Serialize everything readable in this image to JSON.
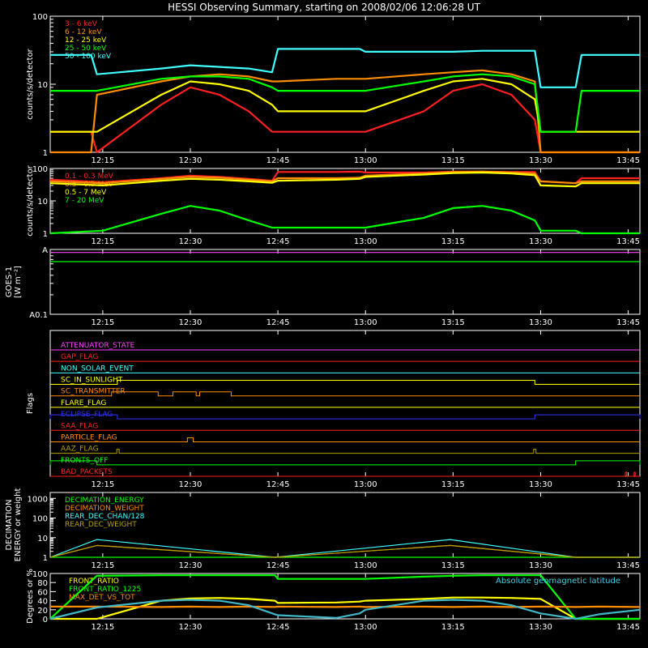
{
  "page": {
    "title": "HESSI Observing Summary, starting on 2008/02/06 12:06:28 UT"
  },
  "time_axis": {
    "start_minutes": 726,
    "end_minutes": 827,
    "ticks": [
      {
        "t": 735,
        "label": "12:15"
      },
      {
        "t": 750,
        "label": "12:30"
      },
      {
        "t": 765,
        "label": "12:45"
      },
      {
        "t": 780,
        "label": "13:00"
      },
      {
        "t": 795,
        "label": "13:15"
      },
      {
        "t": 810,
        "label": "13:30"
      },
      {
        "t": 825,
        "label": "13:45"
      }
    ]
  },
  "chart_data": [
    {
      "type": "line",
      "id": "low-energy",
      "ylabel": "counts/s/detector",
      "yscale": "log",
      "ylim": [
        1,
        100
      ],
      "yticks": [
        {
          "v": 1,
          "label": "1"
        },
        {
          "v": 10,
          "label": "10"
        },
        {
          "v": 100,
          "label": "100"
        }
      ],
      "x": [
        726,
        733,
        734,
        745,
        750,
        755,
        760,
        764,
        765,
        775,
        779,
        780,
        790,
        795,
        800,
        805,
        809,
        810,
        816,
        817,
        827
      ],
      "series": [
        {
          "name": "3 - 6 keV",
          "color": "#ff2020",
          "values": [
            2,
            2,
            1,
            5,
            9,
            7,
            4,
            2,
            2,
            2,
            2,
            2,
            4,
            8,
            10,
            7,
            3,
            1,
            1,
            1,
            1
          ]
        },
        {
          "name": "6 - 12 keV",
          "color": "#ff8c00",
          "values": [
            1,
            1,
            7,
            11,
            13,
            14,
            13,
            11,
            11,
            12,
            12,
            12,
            14,
            15,
            16,
            14,
            11,
            1,
            1,
            1,
            1
          ]
        },
        {
          "name": "12 - 25 keV",
          "color": "#ffff00",
          "values": [
            2,
            2,
            2,
            7,
            11,
            10,
            8,
            5,
            4,
            4,
            4,
            4,
            8,
            11,
            12,
            10,
            6,
            2,
            2,
            2,
            2
          ]
        },
        {
          "name": "25 - 50 keV",
          "color": "#00ff00",
          "values": [
            8,
            8,
            8,
            12,
            13,
            13,
            12,
            9,
            8,
            8,
            8,
            8,
            11,
            13,
            14,
            13,
            10,
            2,
            2,
            8,
            8
          ]
        },
        {
          "name": "50 - 100 keV",
          "color": "#40ffff",
          "values": [
            27,
            27,
            14,
            17,
            19,
            18,
            17,
            15,
            33,
            33,
            33,
            30,
            30,
            30,
            31,
            31,
            31,
            9,
            9,
            27,
            27
          ]
        }
      ]
    },
    {
      "type": "line",
      "id": "high-energy",
      "ylabel": "counts/s/detector",
      "yscale": "log",
      "ylim": [
        1,
        100
      ],
      "yticks": [
        {
          "v": 1,
          "label": "1"
        },
        {
          "v": 10,
          "label": "10"
        },
        {
          "v": 100,
          "label": "100"
        }
      ],
      "x": [
        726,
        735,
        745,
        750,
        755,
        760,
        764,
        765,
        775,
        779,
        780,
        790,
        795,
        800,
        805,
        809,
        810,
        816,
        817,
        827
      ],
      "series": [
        {
          "name": "0.1 - 0.3 MeV",
          "color": "#ff2020",
          "values": [
            45,
            38,
            50,
            60,
            55,
            48,
            42,
            78,
            78,
            80,
            75,
            75,
            80,
            80,
            78,
            78,
            40,
            35,
            50,
            50
          ]
        },
        {
          "name": "0.3 - 0.5 MeV",
          "color": "#ff8c00",
          "values": [
            40,
            35,
            48,
            55,
            52,
            45,
            40,
            50,
            50,
            52,
            60,
            70,
            78,
            80,
            75,
            70,
            40,
            35,
            40,
            40
          ]
        },
        {
          "name": "0.5 - 7 MeV",
          "color": "#ffff00",
          "values": [
            35,
            30,
            42,
            48,
            45,
            40,
            36,
            42,
            45,
            48,
            55,
            65,
            72,
            75,
            70,
            62,
            30,
            28,
            35,
            35
          ]
        },
        {
          "name": "7 - 20 MeV",
          "color": "#00ff00",
          "values": [
            1,
            1.2,
            4,
            7,
            5,
            2.5,
            1.5,
            1.5,
            1.5,
            1.5,
            1.5,
            3,
            6,
            7,
            5,
            2.5,
            1.2,
            1.2,
            1,
            1
          ]
        }
      ]
    },
    {
      "type": "line",
      "id": "goes",
      "ylabel": "GOES-1",
      "ylabel2": "[W m⁻²]",
      "yscale": "log",
      "ylim": [
        0.1,
        1
      ],
      "yticks": [
        {
          "v": 1,
          "label": "A"
        },
        {
          "v": 0.1,
          "label": "A0.1"
        }
      ],
      "x": [
        726,
        827
      ],
      "series": [
        {
          "name": "",
          "color": "#ff40ff",
          "values": [
            0.9,
            0.9
          ]
        },
        {
          "name": "",
          "color": "#00ff00",
          "values": [
            0.65,
            0.65
          ]
        }
      ]
    },
    {
      "type": "line",
      "id": "flags",
      "ylabel": "Flags",
      "flags": [
        {
          "name": "ATTENUATOR_STATE",
          "color": "#ff40ff",
          "segments": []
        },
        {
          "name": "GAP_FLAG",
          "color": "#ff2020",
          "segments": []
        },
        {
          "name": "NON_SOLAR_EVENT",
          "color": "#40ffff",
          "segments": []
        },
        {
          "name": "SC_IN_SUNLIGHT",
          "color": "#ffff00",
          "segments": [
            [
              737.5,
              809
            ]
          ]
        },
        {
          "name": "SC_TRANSMITTER",
          "color": "#ff8c00",
          "segments": [
            [
              736.5,
              744.5
            ],
            [
              747,
              751
            ],
            [
              751.6,
              757
            ]
          ]
        },
        {
          "name": "FLARE_FLAG",
          "color": "#ffff00",
          "segments": []
        },
        {
          "name": "ECLIPSE_FLAG",
          "color": "#3030ff",
          "segments": [
            [
              726,
              737.5
            ],
            [
              809,
              827
            ]
          ]
        },
        {
          "name": "SAA_FLAG",
          "color": "#ff2020",
          "segments": []
        },
        {
          "name": "PARTICLE_FLAG",
          "color": "#ff8c00",
          "segments": [
            [
              749.5,
              750.5
            ]
          ]
        },
        {
          "name": "AAZ_FLAG",
          "color": "#b8a000",
          "segments": [
            [
              737.4,
              737.8
            ],
            [
              808.8,
              809.2
            ]
          ]
        },
        {
          "name": "FRONTS_OFF",
          "color": "#00ff00",
          "segments": [
            [
              726,
              734
            ],
            [
              816,
              827
            ]
          ]
        },
        {
          "name": "BAD_PACKETS",
          "color": "#ff2020",
          "segments": [
            [
              824.5,
              824.7
            ],
            [
              826,
              826.2
            ]
          ]
        }
      ]
    },
    {
      "type": "line",
      "id": "decimation",
      "ylabel": "DECIMATION",
      "ylabel2": "ENERGY or weight",
      "yscale": "log",
      "ylim": [
        1,
        2000
      ],
      "yticks": [
        {
          "v": 1,
          "label": "1"
        },
        {
          "v": 10,
          "label": "10"
        },
        {
          "v": 100,
          "label": "100"
        },
        {
          "v": 1000,
          "label": "1000"
        }
      ],
      "x": [
        726,
        734,
        764.5,
        794.5,
        816,
        827
      ],
      "series": [
        {
          "name": "DECIMATION_ENERGY",
          "color": "#00ff00",
          "values": [
            1,
            1,
            1,
            1,
            1,
            1
          ]
        },
        {
          "name": "DECIMATION_WEIGHT",
          "color": "#ff8c00",
          "values": [
            1,
            4,
            1,
            4,
            1,
            1
          ]
        },
        {
          "name": "REAR_DEC_CHAN/128",
          "color": "#40ffff",
          "values": [
            1,
            8,
            1,
            8,
            1,
            1
          ]
        },
        {
          "name": "REAR_DEC_WEIGHT",
          "color": "#b8a000",
          "values": [
            1,
            4,
            1,
            4,
            1,
            1
          ]
        }
      ]
    },
    {
      "type": "line",
      "id": "ratios",
      "ylabel": "Degrees or %",
      "ylim": [
        0,
        100
      ],
      "yticks": [
        {
          "v": 0,
          "label": "0"
        },
        {
          "v": 20,
          "label": "20"
        },
        {
          "v": 40,
          "label": "40"
        },
        {
          "v": 60,
          "label": "60"
        },
        {
          "v": 80,
          "label": "80"
        },
        {
          "v": 100,
          "label": "100"
        }
      ],
      "annotation": "Absolute geomagnetic latitude",
      "x": [
        726,
        734,
        745,
        750,
        755,
        760,
        764.5,
        765,
        775,
        779,
        780,
        790,
        795,
        800,
        805,
        810,
        816,
        820,
        827
      ],
      "series": [
        {
          "name": "FRONT_RATIO",
          "color": "#ffff00",
          "values": [
            0,
            0,
            40,
            45,
            46,
            44,
            40,
            35,
            36,
            38,
            40,
            44,
            47,
            47,
            46,
            44,
            0,
            0,
            0
          ]
        },
        {
          "name": "FRONT_RATIO_1225",
          "color": "#00ff00",
          "values": [
            0,
            95,
            96,
            96,
            96,
            96,
            96,
            88,
            88,
            88,
            88,
            93,
            95,
            96,
            96,
            96,
            0,
            0,
            0
          ]
        },
        {
          "name": "MAX_DET_VS_TOT",
          "color": "#ff8c00",
          "values": [
            27,
            27,
            26,
            27,
            26,
            27,
            26,
            27,
            26,
            27,
            26,
            27,
            26,
            27,
            26,
            27,
            26,
            27,
            26
          ]
        },
        {
          "name": "",
          "color": "#40b8c8",
          "values": [
            0,
            25,
            40,
            42,
            40,
            30,
            10,
            8,
            2,
            12,
            20,
            40,
            42,
            40,
            30,
            12,
            0,
            10,
            20
          ]
        }
      ]
    }
  ]
}
